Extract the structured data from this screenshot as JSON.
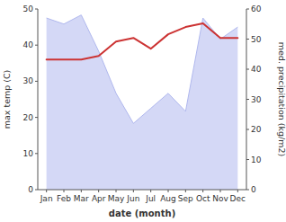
{
  "chart_data": {
    "type": "line",
    "categories": [
      "Jan",
      "Feb",
      "Mar",
      "Apr",
      "May",
      "Jun",
      "Jul",
      "Aug",
      "Sep",
      "Oct",
      "Nov",
      "Dec"
    ],
    "xlabel": "date (month)",
    "ylabel": "max temp (C)",
    "y2label": "med. precipitation (kg/m2)",
    "ylim": [
      0,
      50
    ],
    "yticks": [
      0,
      10,
      20,
      30,
      40,
      50
    ],
    "y2lim": [
      0,
      60
    ],
    "y2ticks": [
      0,
      10,
      20,
      30,
      40,
      50,
      60
    ],
    "grid": false,
    "series": [
      {
        "type": "area",
        "axis": "y2",
        "color": "#b0b8ee",
        "values": [
          57,
          55,
          58,
          46,
          32,
          22,
          27,
          32,
          26,
          57,
          50,
          54
        ]
      },
      {
        "type": "line",
        "color": "#cc3333",
        "values": [
          36,
          36,
          36,
          37,
          41,
          42,
          39,
          43,
          45,
          46,
          42,
          42
        ]
      }
    ]
  }
}
